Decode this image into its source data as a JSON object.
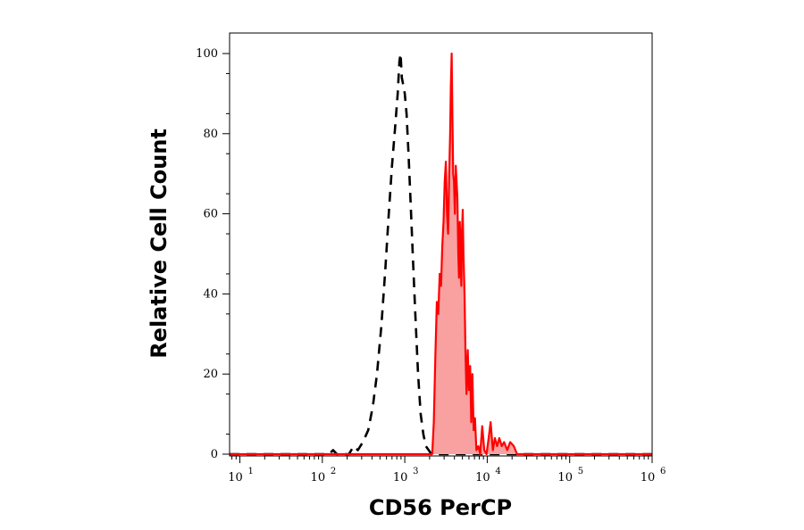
{
  "chart_data": {
    "type": "area",
    "xlabel": "CD56 PerCP",
    "ylabel": "Relative Cell Count",
    "x_scale": "log",
    "xlim": [
      7.5,
      1000000
    ],
    "ylim": [
      0,
      100
    ],
    "y_ticks": [
      0,
      20,
      40,
      60,
      80,
      100
    ],
    "x_ticks": [
      {
        "value": 10,
        "base": "10",
        "exp": "1"
      },
      {
        "value": 100,
        "base": "10",
        "exp": "2"
      },
      {
        "value": 1000,
        "base": "10",
        "exp": "3"
      },
      {
        "value": 10000,
        "base": "10",
        "exp": "4"
      },
      {
        "value": 100000,
        "base": "10",
        "exp": "5"
      },
      {
        "value": 1000000,
        "base": "10",
        "exp": "6"
      }
    ],
    "series": [
      {
        "style": "dashed",
        "color": "#000000",
        "points": [
          [
            7.5,
            0
          ],
          [
            120,
            0
          ],
          [
            135,
            1
          ],
          [
            150,
            0
          ],
          [
            175,
            0
          ],
          [
            210,
            0
          ],
          [
            240,
            2
          ],
          [
            270,
            1
          ],
          [
            310,
            3
          ],
          [
            360,
            6
          ],
          [
            410,
            12
          ],
          [
            460,
            20
          ],
          [
            520,
            32
          ],
          [
            580,
            46
          ],
          [
            640,
            60
          ],
          [
            700,
            72
          ],
          [
            760,
            81
          ],
          [
            820,
            90
          ],
          [
            860,
            98
          ],
          [
            890,
            100
          ],
          [
            920,
            94
          ],
          [
            960,
            92
          ],
          [
            1000,
            90
          ],
          [
            1050,
            85
          ],
          [
            1110,
            75
          ],
          [
            1180,
            62
          ],
          [
            1260,
            48
          ],
          [
            1350,
            34
          ],
          [
            1450,
            20
          ],
          [
            1560,
            10
          ],
          [
            1680,
            5
          ],
          [
            1800,
            2
          ],
          [
            1950,
            1
          ],
          [
            2100,
            0
          ],
          [
            1000000,
            0
          ]
        ]
      },
      {
        "style": "filled",
        "color": "#ff0000",
        "fill": "#f9a0a0",
        "points": [
          [
            7.5,
            0
          ],
          [
            2000,
            0
          ],
          [
            2150,
            0
          ],
          [
            2250,
            8
          ],
          [
            2350,
            25
          ],
          [
            2450,
            38
          ],
          [
            2550,
            35
          ],
          [
            2650,
            45
          ],
          [
            2750,
            42
          ],
          [
            2850,
            52
          ],
          [
            2950,
            58
          ],
          [
            3050,
            68
          ],
          [
            3150,
            73
          ],
          [
            3250,
            60
          ],
          [
            3350,
            55
          ],
          [
            3450,
            70
          ],
          [
            3550,
            80
          ],
          [
            3620,
            92
          ],
          [
            3700,
            100
          ],
          [
            3780,
            85
          ],
          [
            3860,
            70
          ],
          [
            3950,
            68
          ],
          [
            4050,
            60
          ],
          [
            4150,
            72
          ],
          [
            4250,
            68
          ],
          [
            4350,
            64
          ],
          [
            4450,
            50
          ],
          [
            4550,
            44
          ],
          [
            4650,
            58
          ],
          [
            4750,
            50
          ],
          [
            4850,
            42
          ],
          [
            4950,
            56
          ],
          [
            5050,
            61
          ],
          [
            5150,
            50
          ],
          [
            5300,
            40
          ],
          [
            5450,
            25
          ],
          [
            5600,
            15
          ],
          [
            5800,
            26
          ],
          [
            6000,
            16
          ],
          [
            6200,
            22
          ],
          [
            6400,
            8
          ],
          [
            6600,
            20
          ],
          [
            6850,
            6
          ],
          [
            7100,
            9
          ],
          [
            7400,
            1
          ],
          [
            7800,
            2
          ],
          [
            8200,
            0
          ],
          [
            8700,
            7
          ],
          [
            9200,
            1
          ],
          [
            9800,
            0
          ],
          [
            10400,
            4
          ],
          [
            11000,
            8
          ],
          [
            11700,
            1
          ],
          [
            12400,
            4
          ],
          [
            13200,
            2
          ],
          [
            14000,
            4
          ],
          [
            15000,
            2
          ],
          [
            16000,
            3
          ],
          [
            17500,
            1
          ],
          [
            19000,
            3
          ],
          [
            21000,
            2
          ],
          [
            23000,
            0
          ],
          [
            1000000,
            0
          ]
        ]
      }
    ]
  }
}
